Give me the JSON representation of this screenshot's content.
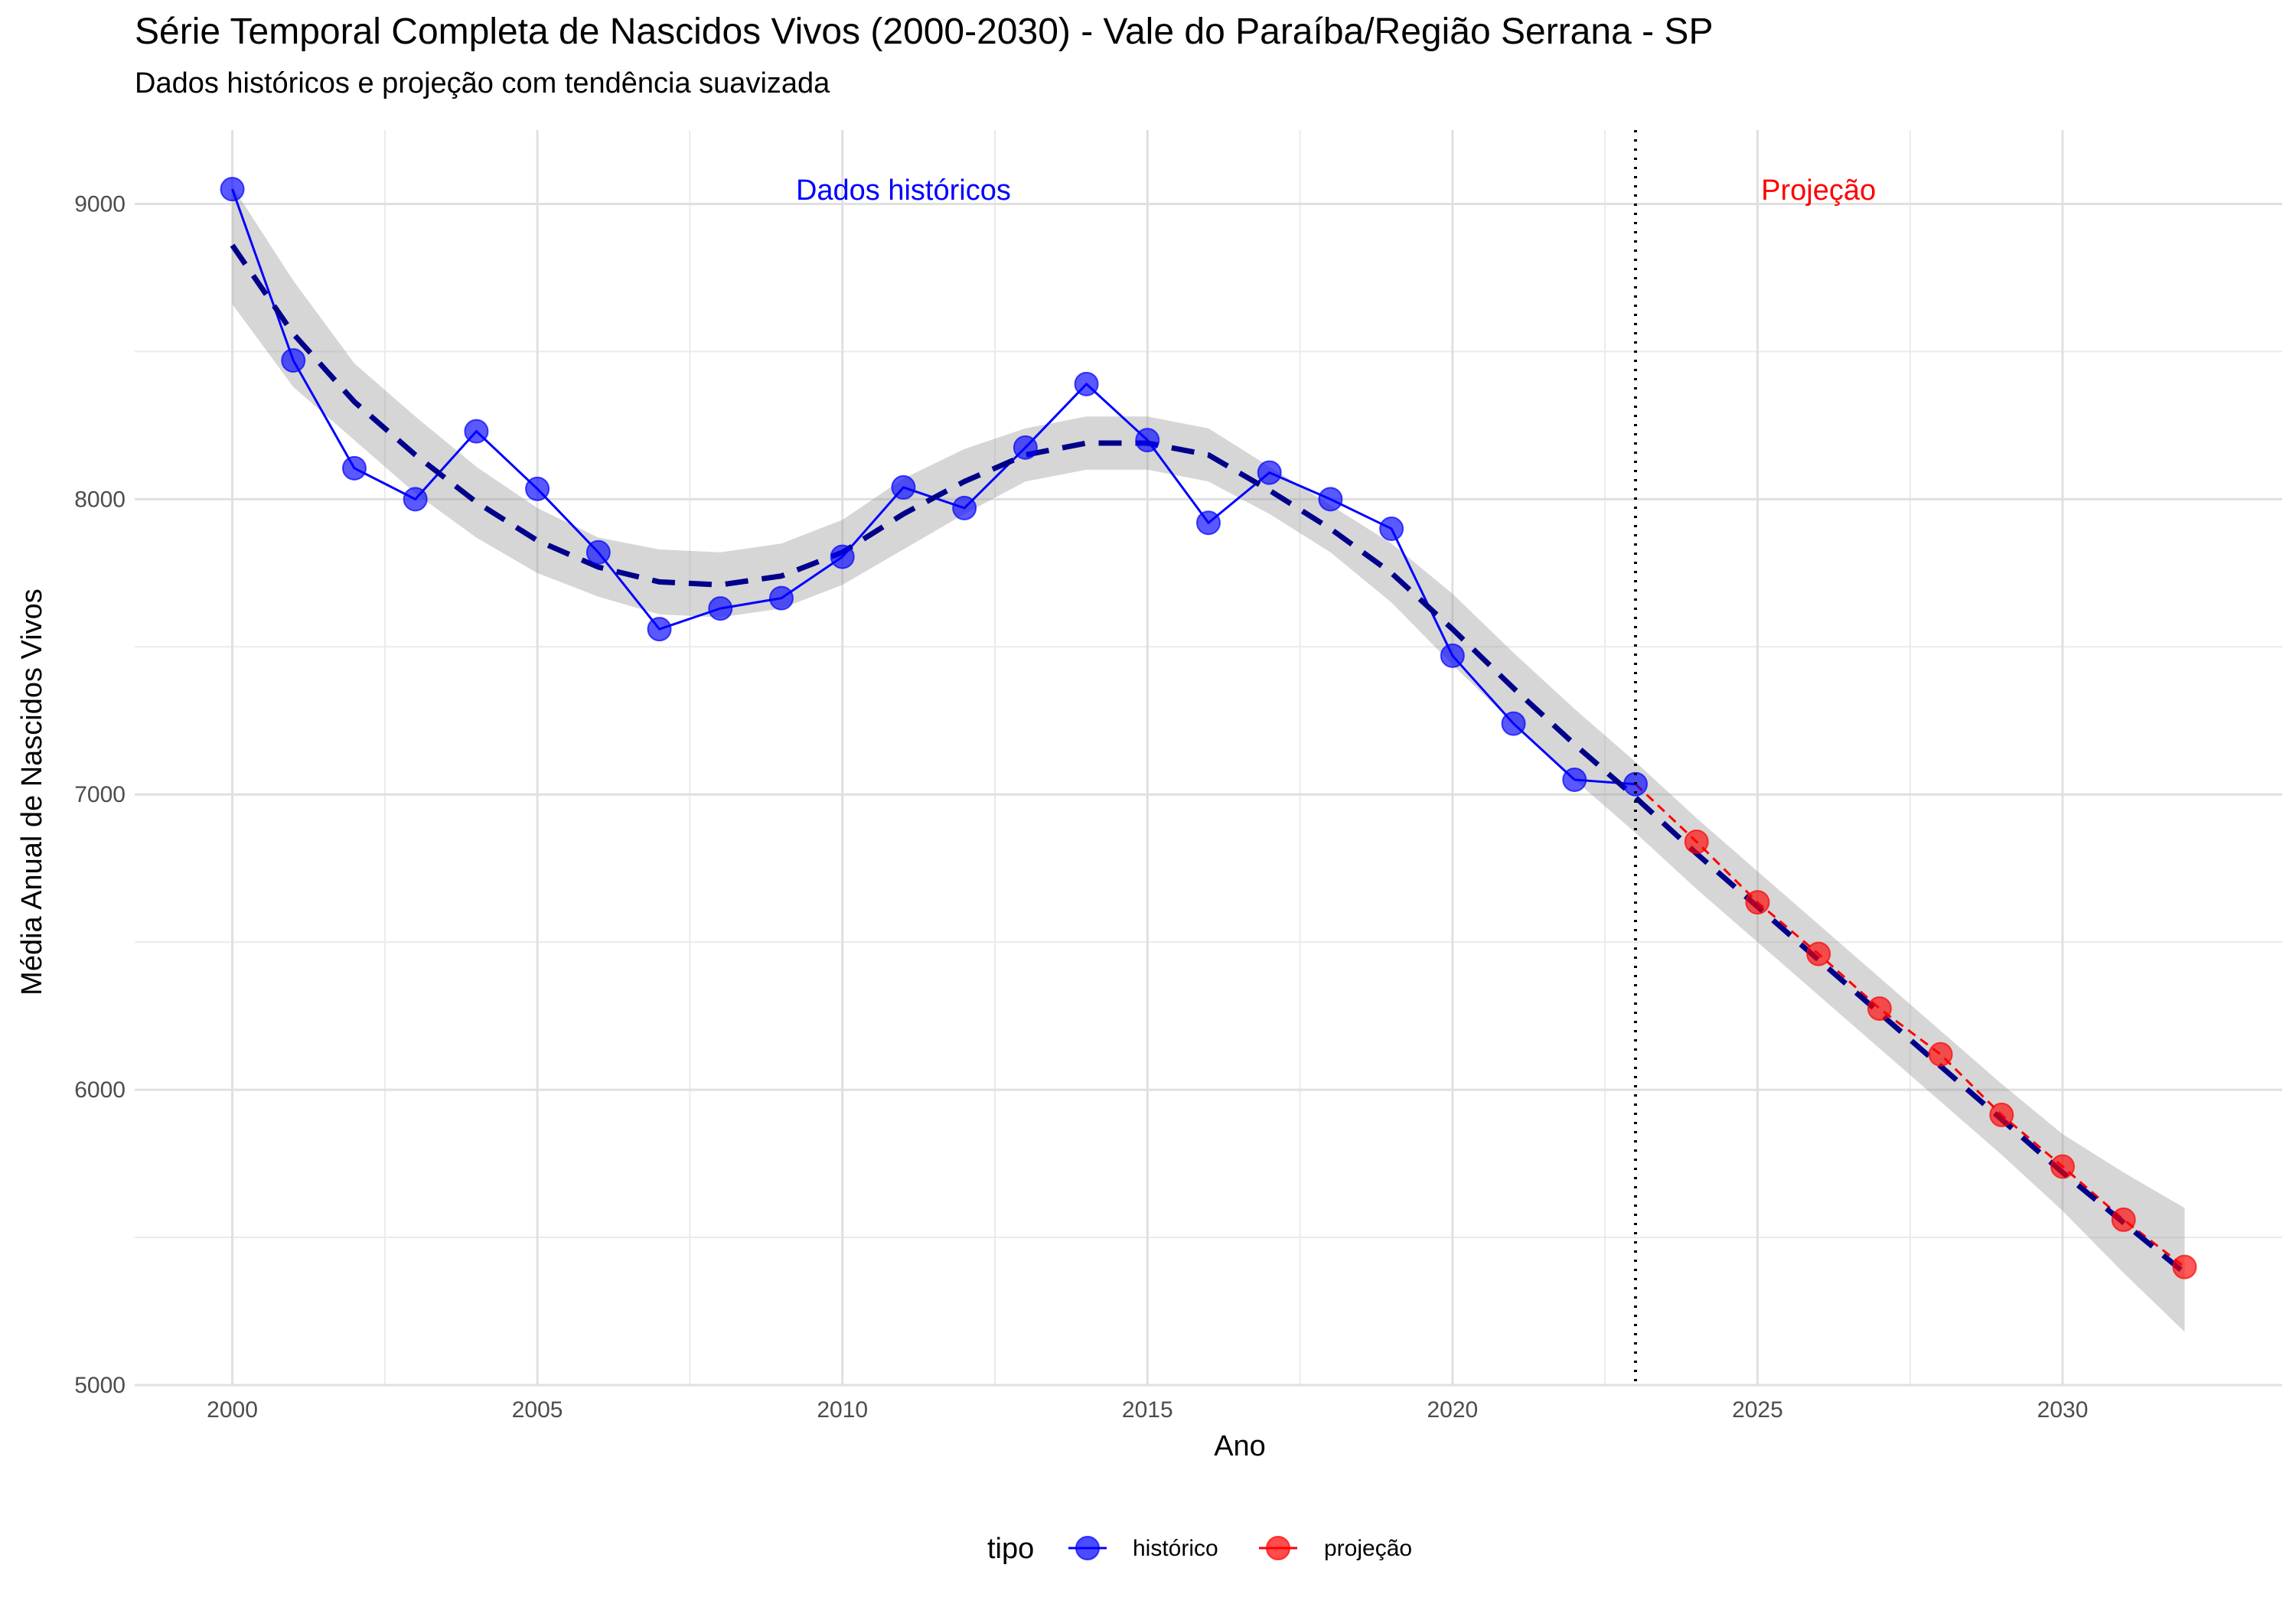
{
  "chart_data": {
    "type": "line",
    "title": "Série Temporal Completa de Nascidos Vivos (2000-2030) -  Vale do Paraíba/Região Serrana - SP",
    "subtitle": "Dados históricos e projeção com tendência suavizada",
    "xlabel": "Ano",
    "ylabel": "Média Anual de Nascidos Vivos",
    "xlim": [
      1998.4,
      2033.6
    ],
    "ylim": [
      5000,
      9250
    ],
    "x_ticks": [
      2000,
      2005,
      2010,
      2015,
      2020,
      2025,
      2030
    ],
    "y_ticks": [
      5000,
      6000,
      7000,
      8000,
      9000
    ],
    "grid": true,
    "legend": {
      "title": "tipo",
      "position": "bottom"
    },
    "series": [
      {
        "name": "histórico",
        "color": "#0000ff",
        "x": [
          2000,
          2001,
          2002,
          2003,
          2004,
          2005,
          2006,
          2007,
          2008,
          2009,
          2010,
          2011,
          2012,
          2013,
          2014,
          2015,
          2016,
          2017,
          2018,
          2019,
          2020,
          2021,
          2022,
          2023
        ],
        "values": [
          9050,
          8470,
          8105,
          8000,
          8230,
          8035,
          7820,
          7560,
          7630,
          7665,
          7805,
          8040,
          7970,
          8175,
          8390,
          8200,
          7920,
          8090,
          8000,
          7900,
          7470,
          7240,
          7050,
          7035
        ]
      },
      {
        "name": "projeção",
        "color": "#ff0000",
        "x": [
          2023,
          2024,
          2025,
          2026,
          2027,
          2028,
          2029,
          2030,
          2031,
          2032
        ],
        "values": [
          7035,
          6840,
          6635,
          6460,
          6275,
          6120,
          5915,
          5740,
          5560,
          5400
        ]
      }
    ],
    "trend": {
      "color": "#00008b",
      "x": [
        2000,
        2001,
        2002,
        2003,
        2004,
        2005,
        2006,
        2007,
        2008,
        2009,
        2010,
        2011,
        2012,
        2013,
        2014,
        2015,
        2016,
        2017,
        2018,
        2019,
        2020,
        2021,
        2022,
        2023,
        2024,
        2025,
        2026,
        2027,
        2028,
        2029,
        2030,
        2031,
        2032
      ],
      "values": [
        8860,
        8560,
        8330,
        8150,
        7990,
        7860,
        7770,
        7720,
        7710,
        7740,
        7820,
        7950,
        8060,
        8150,
        8190,
        8190,
        8150,
        8030,
        7900,
        7750,
        7560,
        7360,
        7170,
        6990,
        6800,
        6620,
        6440,
        6260,
        6080,
        5900,
        5720,
        5550,
        5380
      ],
      "upper": [
        9060,
        8740,
        8460,
        8280,
        8110,
        7970,
        7870,
        7830,
        7820,
        7850,
        7930,
        8070,
        8170,
        8240,
        8280,
        8280,
        8240,
        8110,
        7980,
        7850,
        7680,
        7480,
        7290,
        7110,
        6920,
        6740,
        6560,
        6380,
        6200,
        6020,
        5850,
        5720,
        5600
      ],
      "lower": [
        8660,
        8380,
        8200,
        8020,
        7870,
        7750,
        7670,
        7610,
        7600,
        7630,
        7710,
        7830,
        7950,
        8060,
        8100,
        8100,
        8060,
        7950,
        7820,
        7650,
        7440,
        7240,
        7050,
        6870,
        6680,
        6500,
        6320,
        6140,
        5960,
        5780,
        5590,
        5380,
        5180
      ]
    },
    "cutoff_x": 2023,
    "annotations": [
      {
        "text": "Dados históricos",
        "x": 2011,
        "y": 9050,
        "color": "#0000ff"
      },
      {
        "text": "Projeção",
        "x": 2026,
        "y": 9050,
        "color": "#ff0000"
      }
    ]
  }
}
